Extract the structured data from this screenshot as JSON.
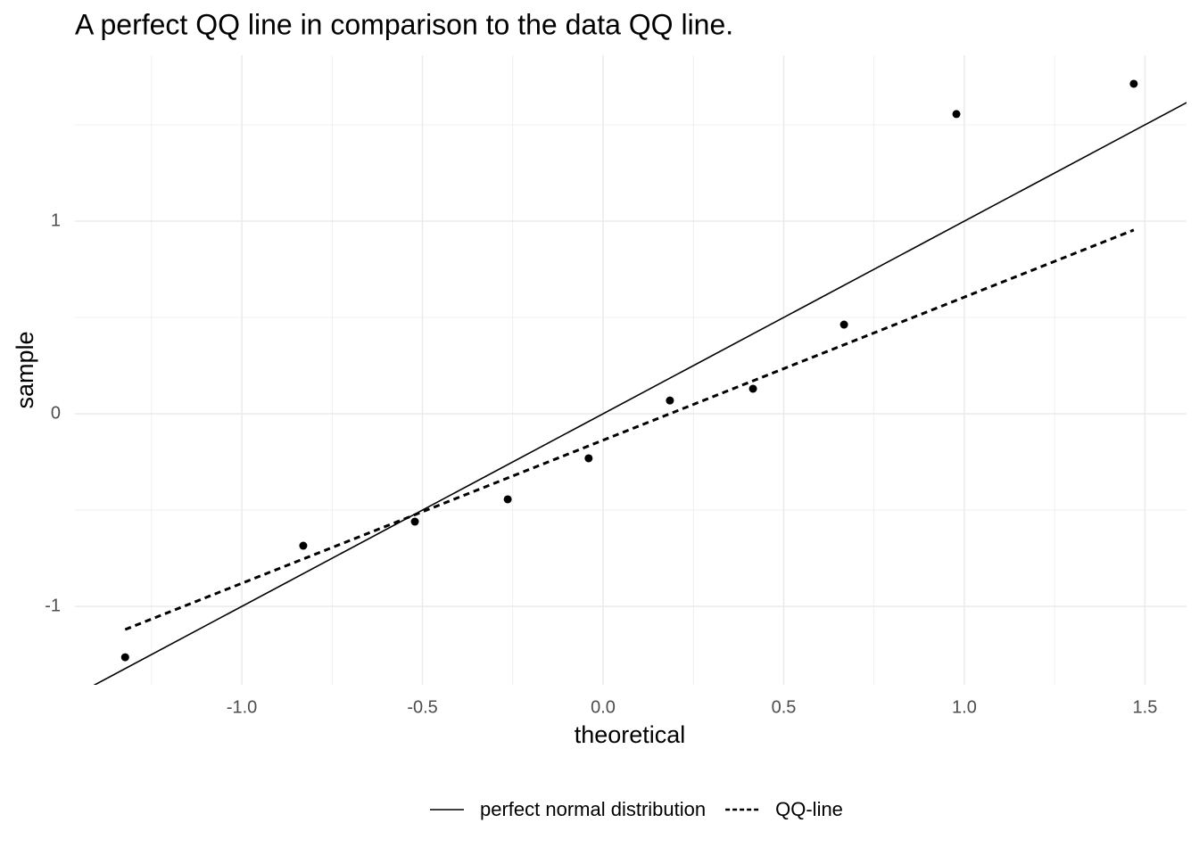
{
  "chart_data": {
    "type": "scatter",
    "title": "A perfect QQ line in comparison to the data QQ line.",
    "x_label": "theoretical",
    "y_label": "sample",
    "x": [
      -1.323,
      -0.83,
      -0.521,
      -0.264,
      -0.04,
      0.185,
      0.415,
      0.667,
      0.978,
      1.469
    ],
    "values": [
      -1.264,
      -0.685,
      -0.56,
      -0.444,
      -0.231,
      0.069,
      0.13,
      0.463,
      1.556,
      1.713
    ],
    "color": "#000000",
    "lines": [
      {
        "name": "perfect normal distribution",
        "dash": "solid",
        "x": [
          -1.42,
          1.62
        ],
        "values": [
          -1.42,
          1.62
        ]
      },
      {
        "name": "QQ-line",
        "dash": "dashed",
        "x": [
          -1.323,
          1.469
        ],
        "values": [
          -1.12,
          0.954
        ]
      }
    ],
    "xlim": [
      -1.462,
      1.615
    ],
    "ylim": [
      -1.407,
      1.861
    ],
    "xticks": [
      {
        "value": -1,
        "label": "-1.0"
      },
      -0.5,
      {
        "value": 0,
        "label": "0.0"
      },
      0.5,
      {
        "value": 1,
        "label": "1.0"
      },
      1.5
    ],
    "yticks": [
      -1,
      0,
      1
    ],
    "xminor": [
      -1.25,
      -0.75,
      -0.25,
      0.25,
      0.75,
      1.25
    ],
    "yminor": [
      -0.5,
      0.5,
      1.5
    ],
    "grid": true,
    "legend": "bottom"
  }
}
